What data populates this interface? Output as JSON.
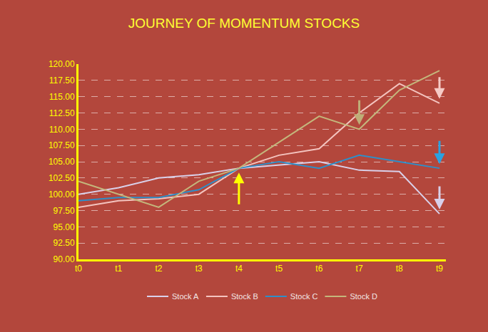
{
  "chart_data": {
    "type": "line",
    "title": "JOURNEY OF MOMENTUM STOCKS",
    "categories": [
      "t0",
      "t1",
      "t2",
      "t3",
      "t4",
      "t5",
      "t6",
      "t7",
      "t8",
      "t9"
    ],
    "series": [
      {
        "name": "Stock A",
        "color": "#D9D1EA",
        "values": [
          100,
          101,
          102.5,
          103,
          104,
          104.5,
          105,
          103.7,
          103.5,
          97
        ]
      },
      {
        "name": "Stock B",
        "color": "#F4C4BF",
        "values": [
          98,
          99,
          99.3,
          100,
          104,
          106,
          107,
          112.5,
          117,
          114
        ]
      },
      {
        "name": "Stock C",
        "color": "#2E8FC9",
        "values": [
          99,
          99.5,
          99.5,
          100.7,
          104,
          105,
          104,
          106,
          105,
          104
        ]
      },
      {
        "name": "Stock D",
        "color": "#C4B77C",
        "values": [
          102,
          100,
          98,
          102,
          104,
          108,
          112,
          110,
          116,
          119
        ]
      }
    ],
    "ylim": [
      90,
      120
    ],
    "yticks": [
      {
        "value": 90,
        "label": "90.00"
      },
      {
        "value": 92.5,
        "label": "92.50"
      },
      {
        "value": 95,
        "label": "95.00"
      },
      {
        "value": 97.5,
        "label": "97.50"
      },
      {
        "value": 100,
        "label": "100.00"
      },
      {
        "value": 102.5,
        "label": "102.50"
      },
      {
        "value": 105,
        "label": "105.00"
      },
      {
        "value": 107.5,
        "label": "107.50"
      },
      {
        "value": 110,
        "label": "110.00"
      },
      {
        "value": 112.5,
        "label": "112.50"
      },
      {
        "value": 115,
        "label": "115.00"
      },
      {
        "value": 117.5,
        "label": "117.50"
      },
      {
        "value": 120,
        "label": "120.00"
      }
    ],
    "grid": true,
    "legend": "bottom"
  }
}
